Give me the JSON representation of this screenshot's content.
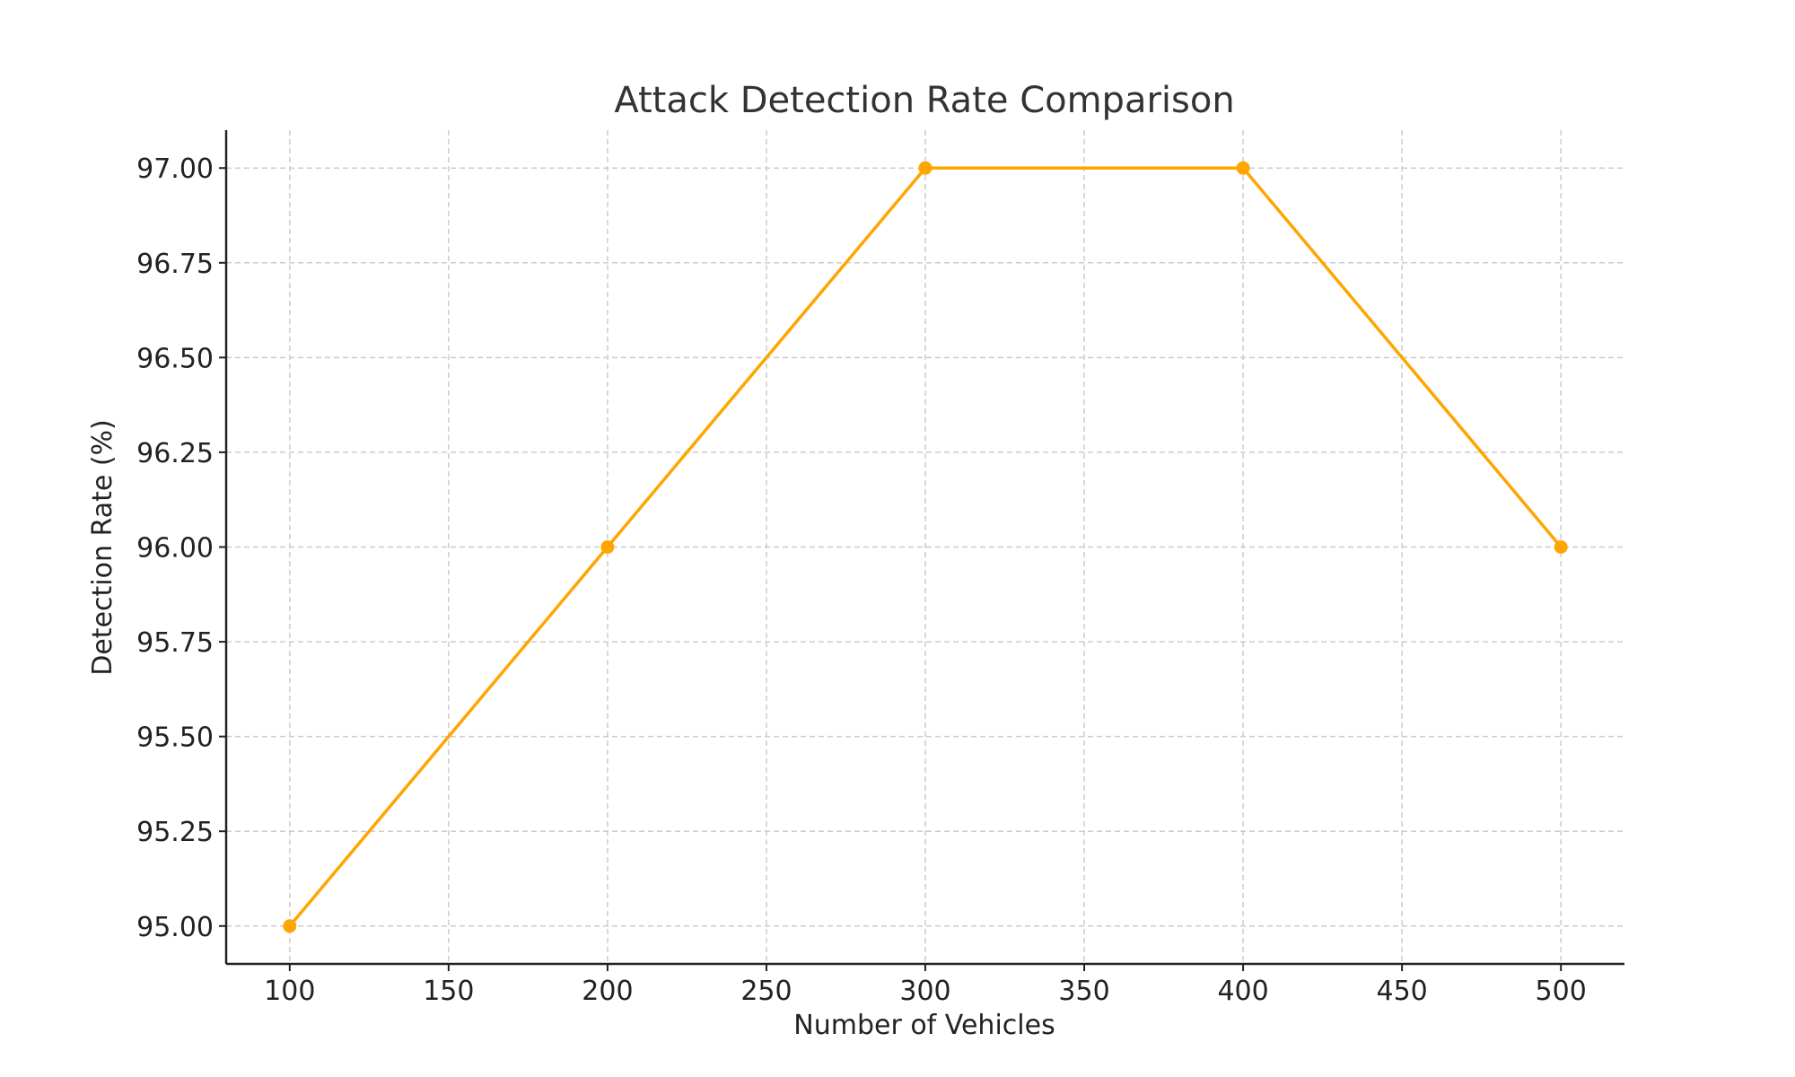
{
  "chart_data": {
    "type": "line",
    "title": "Attack Detection Rate Comparison",
    "xlabel": "Number of Vehicles",
    "ylabel": "Detection Rate (%)",
    "x": [
      100,
      200,
      300,
      400,
      500
    ],
    "series": [
      {
        "values": [
          95.0,
          96.0,
          97.0,
          97.0,
          96.0
        ],
        "color": "#FFA500"
      }
    ],
    "xlim": [
      80,
      520
    ],
    "ylim": [
      94.9,
      97.1
    ],
    "xticks": [
      100,
      150,
      200,
      250,
      300,
      350,
      400,
      450,
      500
    ],
    "xtick_labels": [
      "100",
      "150",
      "200",
      "250",
      "300",
      "350",
      "400",
      "450",
      "500"
    ],
    "yticks": [
      95.0,
      95.25,
      95.5,
      95.75,
      96.0,
      96.25,
      96.5,
      96.75,
      97.0
    ],
    "ytick_labels": [
      "95.00",
      "95.25",
      "95.50",
      "95.75",
      "96.00",
      "96.25",
      "96.50",
      "96.75",
      "97.00"
    ],
    "grid": true,
    "marker": "circle"
  }
}
